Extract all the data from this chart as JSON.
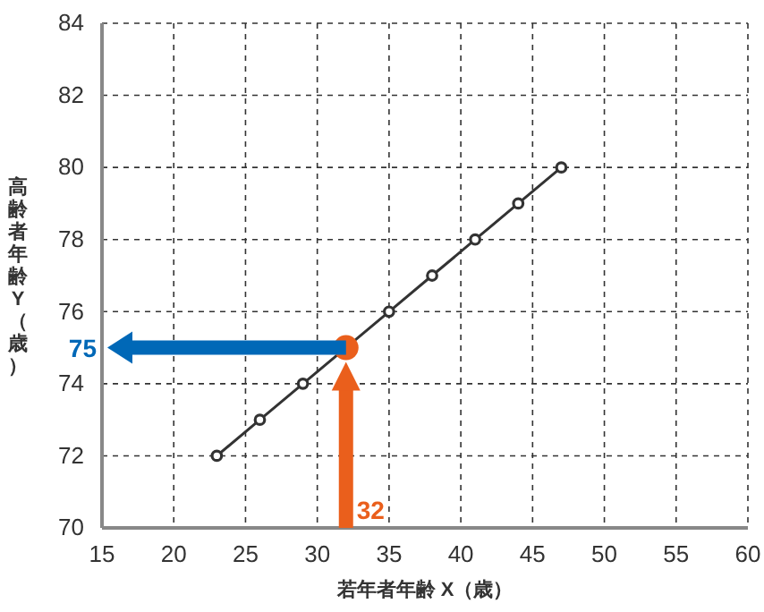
{
  "chart_data": {
    "type": "line",
    "xlabel": "若年者年齢 X（歳）",
    "ylabel": "高齢者年齢 Y（歳）",
    "xlim": [
      15,
      60
    ],
    "xticks": [
      15,
      20,
      25,
      30,
      35,
      40,
      45,
      50,
      55,
      60
    ],
    "ylim": [
      70,
      84
    ],
    "yticks": [
      70,
      72,
      74,
      76,
      78,
      80,
      82,
      84
    ],
    "grid": true,
    "marker": "circle",
    "line_style": "solid",
    "series": [
      {
        "color": "#333333",
        "x": [
          23,
          26,
          29,
          32,
          35,
          38,
          41,
          44,
          47
        ],
        "values": [
          72,
          73,
          74,
          75,
          76,
          77,
          78,
          79,
          80
        ]
      },
      {
        "type": "scatter",
        "color": "#ea5f1c",
        "x": [
          32
        ],
        "values": [
          75
        ]
      }
    ],
    "ref_lines": [
      {
        "axis": "y",
        "value": 75,
        "label": "75",
        "color": "#0068b7"
      },
      {
        "axis": "x",
        "value": 32,
        "label": "32",
        "color": "#ea5f1c"
      }
    ]
  }
}
